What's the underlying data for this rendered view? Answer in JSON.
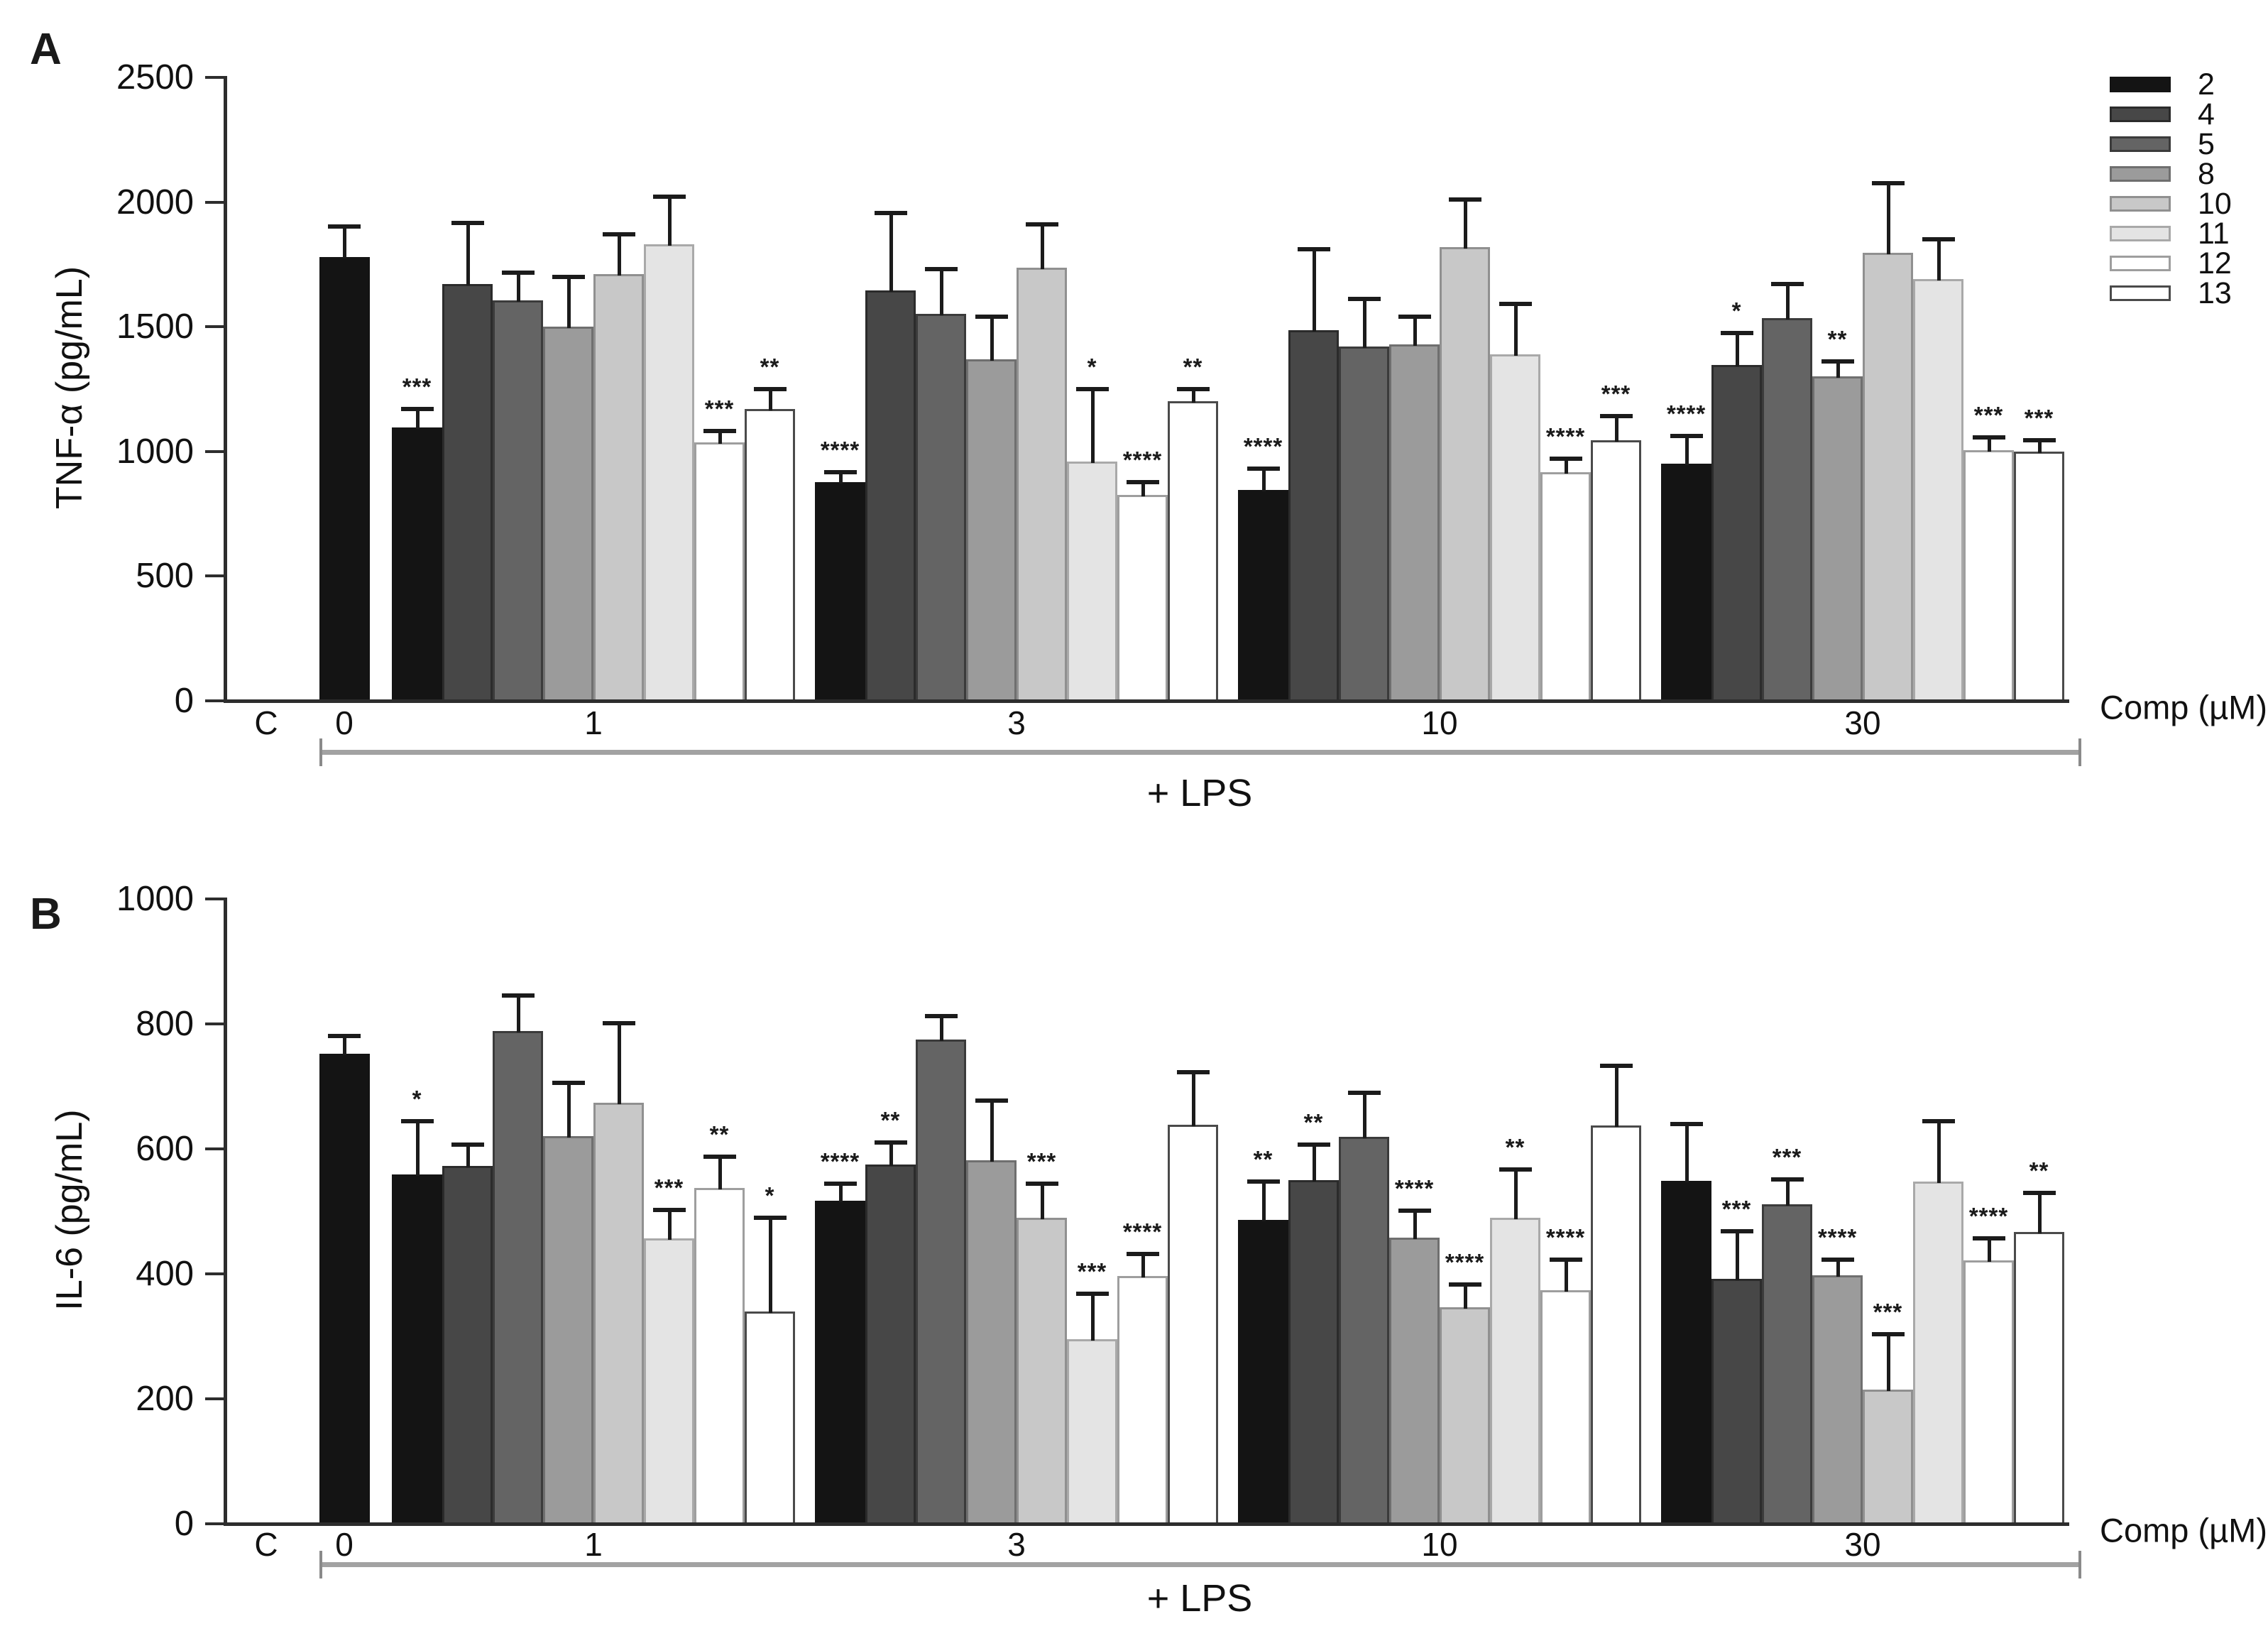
{
  "figure_labels": {
    "panel_a_letter": "A",
    "panel_b_letter": "B",
    "comp_axis_label": "Comp (µM)",
    "lps_bracket_label": "+ LPS",
    "control_label": "C"
  },
  "series": [
    {
      "name": "2",
      "fill": "#141414",
      "stroke": "#141414"
    },
    {
      "name": "4",
      "fill": "#474747",
      "stroke": "#2b2b2b"
    },
    {
      "name": "5",
      "fill": "#646464",
      "stroke": "#3b3b3b"
    },
    {
      "name": "8",
      "fill": "#9b9b9b",
      "stroke": "#6f6f6f"
    },
    {
      "name": "10",
      "fill": "#c8c8c8",
      "stroke": "#909090"
    },
    {
      "name": "11",
      "fill": "#e4e4e4",
      "stroke": "#a9a9a9"
    },
    {
      "name": "12",
      "fill": "#ffffff",
      "stroke": "#9e9e9e"
    },
    {
      "name": "13",
      "fill": "#ffffff",
      "stroke": "#4a4a4a"
    }
  ],
  "chart_data": [
    {
      "type": "bar",
      "panel": "A",
      "ylabel": "TNF-α (pg/mL)",
      "ylim": [
        0,
        2500
      ],
      "yticks": [
        0,
        500,
        1000,
        1500,
        2000,
        2500
      ],
      "categories": [
        "C",
        "0",
        "1",
        "3",
        "10",
        "30"
      ],
      "legend_position": "top-right",
      "grid": false,
      "control": {
        "label": "C",
        "value": null
      },
      "lps_only": {
        "category": "0",
        "series": "2",
        "value": 1775,
        "err": 120
      },
      "groups": [
        {
          "conc": "1",
          "bars": [
            {
              "s": "2",
              "v": 1090,
              "e": 75,
              "sig": "***"
            },
            {
              "s": "4",
              "v": 1665,
              "e": 245,
              "sig": ""
            },
            {
              "s": "5",
              "v": 1600,
              "e": 110,
              "sig": ""
            },
            {
              "s": "8",
              "v": 1495,
              "e": 200,
              "sig": ""
            },
            {
              "s": "10",
              "v": 1705,
              "e": 160,
              "sig": ""
            },
            {
              "s": "11",
              "v": 1825,
              "e": 190,
              "sig": ""
            },
            {
              "s": "12",
              "v": 1030,
              "e": 45,
              "sig": "***"
            },
            {
              "s": "13",
              "v": 1165,
              "e": 80,
              "sig": "**"
            }
          ]
        },
        {
          "conc": "3",
          "bars": [
            {
              "s": "2",
              "v": 870,
              "e": 40,
              "sig": "****"
            },
            {
              "s": "4",
              "v": 1640,
              "e": 310,
              "sig": ""
            },
            {
              "s": "5",
              "v": 1545,
              "e": 180,
              "sig": ""
            },
            {
              "s": "8",
              "v": 1365,
              "e": 170,
              "sig": ""
            },
            {
              "s": "10",
              "v": 1730,
              "e": 175,
              "sig": ""
            },
            {
              "s": "11",
              "v": 955,
              "e": 290,
              "sig": "*"
            },
            {
              "s": "12",
              "v": 820,
              "e": 50,
              "sig": "****"
            },
            {
              "s": "13",
              "v": 1195,
              "e": 50,
              "sig": "**"
            }
          ]
        },
        {
          "conc": "10",
          "bars": [
            {
              "s": "2",
              "v": 840,
              "e": 85,
              "sig": "****"
            },
            {
              "s": "4",
              "v": 1480,
              "e": 325,
              "sig": ""
            },
            {
              "s": "5",
              "v": 1415,
              "e": 190,
              "sig": ""
            },
            {
              "s": "8",
              "v": 1425,
              "e": 110,
              "sig": ""
            },
            {
              "s": "10",
              "v": 1815,
              "e": 190,
              "sig": ""
            },
            {
              "s": "11",
              "v": 1385,
              "e": 200,
              "sig": ""
            },
            {
              "s": "12",
              "v": 910,
              "e": 55,
              "sig": "****"
            },
            {
              "s": "13",
              "v": 1040,
              "e": 95,
              "sig": "***"
            }
          ]
        },
        {
          "conc": "30",
          "bars": [
            {
              "s": "2",
              "v": 945,
              "e": 110,
              "sig": "****"
            },
            {
              "s": "4",
              "v": 1340,
              "e": 130,
              "sig": "*"
            },
            {
              "s": "5",
              "v": 1530,
              "e": 135,
              "sig": ""
            },
            {
              "s": "8",
              "v": 1295,
              "e": 60,
              "sig": "**"
            },
            {
              "s": "10",
              "v": 1790,
              "e": 280,
              "sig": ""
            },
            {
              "s": "11",
              "v": 1685,
              "e": 160,
              "sig": ""
            },
            {
              "s": "12",
              "v": 1000,
              "e": 50,
              "sig": "***"
            },
            {
              "s": "13",
              "v": 995,
              "e": 45,
              "sig": "***"
            }
          ]
        }
      ]
    },
    {
      "type": "bar",
      "panel": "B",
      "ylabel": "IL-6 (pg/mL)",
      "ylim": [
        0,
        1000
      ],
      "yticks": [
        0,
        200,
        400,
        600,
        800,
        1000
      ],
      "categories": [
        "C",
        "0",
        "1",
        "3",
        "10",
        "30"
      ],
      "legend_position": "none",
      "grid": false,
      "control": {
        "label": "C",
        "value": null
      },
      "lps_only": {
        "category": "0",
        "series": "2",
        "value": 750,
        "err": 28
      },
      "groups": [
        {
          "conc": "1",
          "bars": [
            {
              "s": "2",
              "v": 557,
              "e": 85,
              "sig": "*"
            },
            {
              "s": "4",
              "v": 570,
              "e": 35,
              "sig": ""
            },
            {
              "s": "5",
              "v": 786,
              "e": 57,
              "sig": ""
            },
            {
              "s": "8",
              "v": 618,
              "e": 85,
              "sig": ""
            },
            {
              "s": "10",
              "v": 672,
              "e": 127,
              "sig": ""
            },
            {
              "s": "11",
              "v": 455,
              "e": 45,
              "sig": "***"
            },
            {
              "s": "12",
              "v": 535,
              "e": 50,
              "sig": "**"
            },
            {
              "s": "13",
              "v": 337,
              "e": 150,
              "sig": "*"
            }
          ]
        },
        {
          "conc": "3",
          "bars": [
            {
              "s": "2",
              "v": 515,
              "e": 27,
              "sig": "****"
            },
            {
              "s": "4",
              "v": 573,
              "e": 35,
              "sig": "**"
            },
            {
              "s": "5",
              "v": 773,
              "e": 37,
              "sig": ""
            },
            {
              "s": "8",
              "v": 580,
              "e": 95,
              "sig": ""
            },
            {
              "s": "10",
              "v": 487,
              "e": 55,
              "sig": "***"
            },
            {
              "s": "11",
              "v": 293,
              "e": 73,
              "sig": "***"
            },
            {
              "s": "12",
              "v": 394,
              "e": 35,
              "sig": "****"
            },
            {
              "s": "13",
              "v": 636,
              "e": 85,
              "sig": ""
            }
          ]
        },
        {
          "conc": "10",
          "bars": [
            {
              "s": "2",
              "v": 484,
              "e": 61,
              "sig": "**"
            },
            {
              "s": "4",
              "v": 548,
              "e": 57,
              "sig": "**"
            },
            {
              "s": "5",
              "v": 617,
              "e": 70,
              "sig": ""
            },
            {
              "s": "8",
              "v": 456,
              "e": 43,
              "sig": "****"
            },
            {
              "s": "10",
              "v": 344,
              "e": 37,
              "sig": "****"
            },
            {
              "s": "11",
              "v": 488,
              "e": 77,
              "sig": "**"
            },
            {
              "s": "12",
              "v": 372,
              "e": 49,
              "sig": "****"
            },
            {
              "s": "13",
              "v": 635,
              "e": 96,
              "sig": ""
            }
          ]
        },
        {
          "conc": "30",
          "bars": [
            {
              "s": "2",
              "v": 547,
              "e": 91,
              "sig": ""
            },
            {
              "s": "4",
              "v": 390,
              "e": 76,
              "sig": "***"
            },
            {
              "s": "5",
              "v": 509,
              "e": 40,
              "sig": "***"
            },
            {
              "s": "8",
              "v": 395,
              "e": 25,
              "sig": "****"
            },
            {
              "s": "10",
              "v": 212,
              "e": 89,
              "sig": "***"
            },
            {
              "s": "11",
              "v": 545,
              "e": 97,
              "sig": ""
            },
            {
              "s": "12",
              "v": 419,
              "e": 36,
              "sig": "****"
            },
            {
              "s": "13",
              "v": 465,
              "e": 62,
              "sig": "**"
            }
          ]
        }
      ]
    }
  ]
}
